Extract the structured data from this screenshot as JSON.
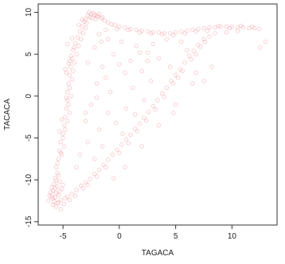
{
  "chart_data": {
    "type": "scatter",
    "title": "",
    "xlabel": "TAGACA",
    "ylabel": "TACACA",
    "xlim": [
      -7.2,
      14
    ],
    "ylim": [
      -15.4,
      11
    ],
    "x_ticks": [
      -5,
      0,
      5,
      10
    ],
    "y_ticks": [
      -15,
      -10,
      -5,
      0,
      5,
      10
    ],
    "x_tick_labels": [
      "-5",
      "0",
      "5",
      "10"
    ],
    "y_tick_labels": [
      "-15",
      "-10",
      "-5",
      "0",
      "5",
      "10"
    ],
    "grid": false,
    "legend": false,
    "point_color": "#e8404a",
    "point_opacity": 0.13,
    "points": [
      [
        -6.1,
        -11.5
      ],
      [
        -5.9,
        -12.2
      ],
      [
        -5.7,
        -11.0
      ],
      [
        -5.5,
        -12.8
      ],
      [
        -5.8,
        -10.5
      ],
      [
        -6.0,
        -12.0
      ],
      [
        -5.4,
        -11.8
      ],
      [
        -5.6,
        -13.2
      ],
      [
        -5.2,
        -12.4
      ],
      [
        -5.9,
        -11.3
      ],
      [
        -5.3,
        -10.2
      ],
      [
        -5.7,
        -9.8
      ],
      [
        -5.5,
        -10.8
      ],
      [
        -6.2,
        -11.9
      ],
      [
        -5.1,
        -11.1
      ],
      [
        -5.8,
        -12.6
      ],
      [
        -4.9,
        -12.9
      ],
      [
        -5.4,
        -9.5
      ],
      [
        -6.0,
        -10.9
      ],
      [
        -5.6,
        -11.6
      ],
      [
        -5.2,
        -13.5
      ],
      [
        -5.7,
        -12.1
      ],
      [
        -5.3,
        -11.4
      ],
      [
        -5.9,
        -13.0
      ],
      [
        -5.5,
        -9.2
      ],
      [
        -4.8,
        -12.2
      ],
      [
        -6.3,
        -12.5
      ],
      [
        -5.0,
        -10.6
      ],
      [
        -5.6,
        -10.1
      ],
      [
        -5.4,
        -12.7
      ],
      [
        -4.6,
        -12.0
      ],
      [
        -4.2,
        -11.7
      ],
      [
        -3.8,
        -11.2
      ],
      [
        -3.4,
        -10.7
      ],
      [
        -3.0,
        -10.3
      ],
      [
        -2.6,
        -9.9
      ],
      [
        -2.2,
        -9.3
      ],
      [
        -1.8,
        -8.8
      ],
      [
        -1.4,
        -8.2
      ],
      [
        -1.0,
        -7.6
      ],
      [
        -0.6,
        -7.0
      ],
      [
        -0.2,
        -6.4
      ],
      [
        0.2,
        -5.8
      ],
      [
        0.6,
        -5.2
      ],
      [
        1.0,
        -4.6
      ],
      [
        1.4,
        -3.9
      ],
      [
        1.8,
        -3.3
      ],
      [
        2.2,
        -2.6
      ],
      [
        2.6,
        -1.9
      ],
      [
        3.0,
        -1.2
      ],
      [
        3.4,
        -0.5
      ],
      [
        3.8,
        0.3
      ],
      [
        4.2,
        1.0
      ],
      [
        4.6,
        1.8
      ],
      [
        5.0,
        2.5
      ],
      [
        5.4,
        3.2
      ],
      [
        5.8,
        4.0
      ],
      [
        6.2,
        4.8
      ],
      [
        6.6,
        5.4
      ],
      [
        7.0,
        6.1
      ],
      [
        -4.4,
        -12.4
      ],
      [
        -3.9,
        -11.9
      ],
      [
        -3.2,
        -11.0
      ],
      [
        -2.8,
        -10.6
      ],
      [
        -2.0,
        -9.6
      ],
      [
        -1.2,
        -8.5
      ],
      [
        0.0,
        -6.8
      ],
      [
        0.8,
        -5.6
      ],
      [
        1.6,
        -4.2
      ],
      [
        2.4,
        -2.9
      ],
      [
        3.2,
        -1.6
      ],
      [
        4.0,
        -0.1
      ],
      [
        4.8,
        1.5
      ],
      [
        5.6,
        3.0
      ],
      [
        6.4,
        4.4
      ],
      [
        7.2,
        5.9
      ],
      [
        7.6,
        6.5
      ],
      [
        8.0,
        7.1
      ],
      [
        6.8,
        5.0
      ],
      [
        5.2,
        2.2
      ],
      [
        -5.6,
        -8.5
      ],
      [
        -5.4,
        -7.5
      ],
      [
        -5.3,
        -6.5
      ],
      [
        -5.2,
        -5.5
      ],
      [
        -5.0,
        -4.5
      ],
      [
        -4.9,
        -3.5
      ],
      [
        -4.8,
        -2.5
      ],
      [
        -4.7,
        -1.5
      ],
      [
        -4.6,
        -0.5
      ],
      [
        -4.6,
        0.5
      ],
      [
        -4.5,
        1.5
      ],
      [
        -4.4,
        2.5
      ],
      [
        -4.3,
        3.5
      ],
      [
        -4.2,
        4.5
      ],
      [
        -4.1,
        5.5
      ],
      [
        -3.9,
        6.3
      ],
      [
        -3.7,
        7.0
      ],
      [
        -3.5,
        7.7
      ],
      [
        -3.3,
        8.3
      ],
      [
        -3.1,
        8.9
      ],
      [
        -5.5,
        -8.0
      ],
      [
        -5.1,
        -7.0
      ],
      [
        -4.9,
        -6.0
      ],
      [
        -5.0,
        -5.0
      ],
      [
        -4.8,
        -4.0
      ],
      [
        -4.6,
        -3.0
      ],
      [
        -4.4,
        -2.0
      ],
      [
        -4.5,
        -1.0
      ],
      [
        -4.3,
        0.0
      ],
      [
        -4.4,
        1.0
      ],
      [
        -4.2,
        2.0
      ],
      [
        -4.1,
        3.0
      ],
      [
        -4.0,
        4.0
      ],
      [
        -3.8,
        5.0
      ],
      [
        -3.6,
        6.0
      ],
      [
        -3.4,
        6.8
      ],
      [
        -3.2,
        7.5
      ],
      [
        -3.0,
        8.1
      ],
      [
        -4.7,
        2.8
      ],
      [
        -4.5,
        3.9
      ],
      [
        -4.3,
        4.8
      ],
      [
        -4.0,
        5.8
      ],
      [
        -4.6,
        6.2
      ],
      [
        -4.2,
        6.9
      ],
      [
        -4.4,
        4.2
      ],
      [
        -4.8,
        3.2
      ],
      [
        -4.7,
        -0.2
      ],
      [
        -5.1,
        -2.8
      ],
      [
        -5.3,
        -4.2
      ],
      [
        -5.2,
        -6.8
      ],
      [
        -3.0,
        9.2
      ],
      [
        -2.8,
        9.6
      ],
      [
        -2.5,
        9.8
      ],
      [
        -2.2,
        9.7
      ],
      [
        -1.9,
        9.5
      ],
      [
        -1.6,
        9.3
      ],
      [
        -1.3,
        9.0
      ],
      [
        -2.6,
        9.4
      ],
      [
        -2.3,
        9.9
      ],
      [
        -2.0,
        9.6
      ],
      [
        -3.3,
        9.1
      ],
      [
        -1.0,
        8.8
      ],
      [
        -0.7,
        8.6
      ],
      [
        -2.7,
        10.0
      ],
      [
        -2.1,
        9.2
      ],
      [
        -1.5,
        9.4
      ],
      [
        -2.4,
        9.3
      ],
      [
        -2.9,
        8.7
      ],
      [
        -1.8,
        9.8
      ],
      [
        -3.6,
        8.5
      ],
      [
        -0.4,
        8.5
      ],
      [
        0.0,
        8.3
      ],
      [
        0.5,
        8.2
      ],
      [
        1.0,
        8.0
      ],
      [
        1.5,
        7.9
      ],
      [
        2.0,
        7.8
      ],
      [
        2.5,
        7.7
      ],
      [
        3.0,
        7.6
      ],
      [
        3.5,
        7.6
      ],
      [
        4.0,
        7.5
      ],
      [
        4.5,
        7.5
      ],
      [
        5.0,
        7.6
      ],
      [
        5.5,
        7.7
      ],
      [
        6.0,
        7.8
      ],
      [
        6.5,
        7.9
      ],
      [
        7.0,
        8.0
      ],
      [
        7.5,
        8.1
      ],
      [
        8.0,
        8.2
      ],
      [
        8.5,
        8.2
      ],
      [
        9.0,
        8.3
      ],
      [
        9.5,
        8.3
      ],
      [
        10.0,
        8.3
      ],
      [
        10.5,
        8.2
      ],
      [
        11.0,
        8.2
      ],
      [
        11.5,
        8.1
      ],
      [
        12.0,
        8.1
      ],
      [
        12.4,
        8.0
      ],
      [
        8.8,
        8.4
      ],
      [
        9.8,
        8.1
      ],
      [
        10.8,
        8.4
      ],
      [
        11.8,
        8.3
      ],
      [
        7.8,
        7.8
      ],
      [
        6.8,
        7.7
      ],
      [
        5.8,
        7.5
      ],
      [
        4.8,
        7.3
      ],
      [
        3.8,
        7.4
      ],
      [
        2.8,
        7.5
      ],
      [
        1.8,
        7.6
      ],
      [
        0.8,
        7.9
      ],
      [
        -0.2,
        8.0
      ],
      [
        -1.2,
        7.9
      ],
      [
        -1.8,
        7.4
      ],
      [
        -1.0,
        6.8
      ],
      [
        0.2,
        6.5
      ],
      [
        1.5,
        6.0
      ],
      [
        2.5,
        5.2
      ],
      [
        -0.5,
        5.0
      ],
      [
        1.0,
        4.2
      ],
      [
        -1.5,
        3.5
      ],
      [
        0.5,
        2.8
      ],
      [
        2.0,
        3.0
      ],
      [
        3.5,
        4.5
      ],
      [
        -2.0,
        1.5
      ],
      [
        -0.8,
        0.5
      ],
      [
        1.2,
        1.0
      ],
      [
        2.8,
        1.8
      ],
      [
        4.5,
        3.5
      ],
      [
        6.0,
        5.5
      ],
      [
        -2.5,
        -1.0
      ],
      [
        -1.0,
        -2.0
      ],
      [
        0.6,
        -1.5
      ],
      [
        2.2,
        -0.5
      ],
      [
        -3.0,
        -3.0
      ],
      [
        -1.8,
        -4.0
      ],
      [
        -0.3,
        -3.2
      ],
      [
        1.4,
        -2.2
      ],
      [
        -2.8,
        -5.5
      ],
      [
        -1.5,
        -6.0
      ],
      [
        0.3,
        -4.5
      ],
      [
        -3.5,
        -7.0
      ],
      [
        -2.2,
        -7.5
      ],
      [
        -3.8,
        -8.5
      ],
      [
        -3.0,
        -2.0
      ],
      [
        -2.0,
        -0.2
      ],
      [
        -1.2,
        2.2
      ],
      [
        0.0,
        3.8
      ],
      [
        -2.8,
        4.0
      ],
      [
        -2.2,
        5.8
      ],
      [
        -1.6,
        6.5
      ],
      [
        3.0,
        6.2
      ],
      [
        4.2,
        6.8
      ],
      [
        5.5,
        6.5
      ],
      [
        7.5,
        6.8
      ],
      [
        8.5,
        7.5
      ],
      [
        9.5,
        7.6
      ],
      [
        10.5,
        7.8
      ],
      [
        13.0,
        6.5
      ],
      [
        12.5,
        5.8
      ],
      [
        8.2,
        3.5
      ],
      [
        6.5,
        1.5
      ],
      [
        5.0,
        -1.0
      ],
      [
        3.5,
        -3.5
      ],
      [
        2.0,
        -6.0
      ],
      [
        0.5,
        -8.5
      ],
      [
        -0.5,
        -9.8
      ],
      [
        4.8,
        -2.0
      ],
      [
        6.8,
        2.8
      ],
      [
        7.5,
        1.8
      ],
      [
        2.5,
        4.2
      ],
      [
        1.8,
        5.2
      ]
    ]
  }
}
